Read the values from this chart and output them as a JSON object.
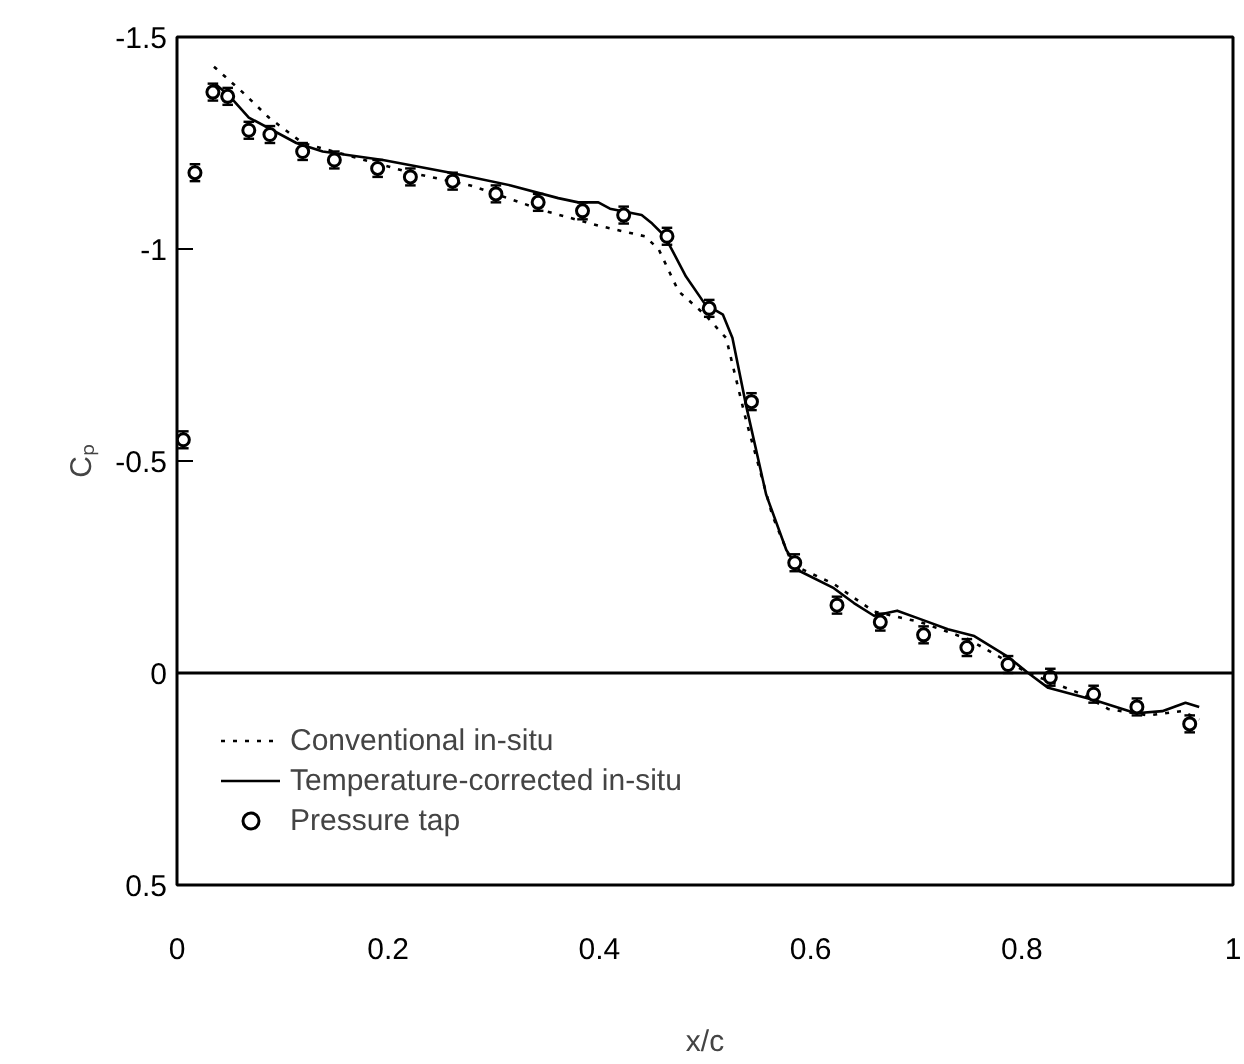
{
  "chart_data": {
    "type": "line",
    "xlabel": "x/c",
    "ylabel": "Cₚ",
    "xlim": [
      0,
      1
    ],
    "xticks": [
      0,
      0.2,
      0.4,
      0.6,
      0.8,
      1
    ],
    "ylim": [
      0.5,
      -1.5
    ],
    "yticks": [
      -1.5,
      -1,
      -0.5,
      0,
      0.5
    ],
    "grid": false,
    "legend": "bottom left",
    "ref_lines": [
      {
        "axis": "y",
        "value": 0
      }
    ],
    "series": [
      {
        "name": "Conventional in-situ",
        "line_style": "dotted",
        "color": "#000000",
        "x": [
          0.035,
          0.062,
          0.087,
          0.119,
          0.163,
          0.221,
          0.278,
          0.348,
          0.399,
          0.443,
          0.456,
          0.475,
          0.5,
          0.52,
          0.539,
          0.564,
          0.583,
          0.622,
          0.66,
          0.704,
          0.749,
          0.806,
          0.857,
          0.882,
          0.92,
          0.952,
          0.968
        ],
        "values": [
          -1.43,
          -1.37,
          -1.31,
          -1.25,
          -1.22,
          -1.18,
          -1.15,
          -1.09,
          -1.055,
          -1.03,
          -1.0,
          -0.9,
          -0.845,
          -0.79,
          -0.595,
          -0.37,
          -0.255,
          -0.21,
          -0.145,
          -0.12,
          -0.08,
          0.0,
          0.05,
          0.085,
          0.1,
          0.09,
          0.11
        ]
      },
      {
        "name": "Temperature-corrected in-situ",
        "line_style": "solid",
        "color": "#000000",
        "x": [
          0.036,
          0.05,
          0.068,
          0.113,
          0.138,
          0.195,
          0.259,
          0.316,
          0.361,
          0.38,
          0.399,
          0.41,
          0.44,
          0.45,
          0.462,
          0.482,
          0.5,
          0.517,
          0.526,
          0.539,
          0.558,
          0.577,
          0.59,
          0.622,
          0.641,
          0.66,
          0.682,
          0.704,
          0.73,
          0.755,
          0.787,
          0.806,
          0.825,
          0.87,
          0.908,
          0.933,
          0.955,
          0.968
        ],
        "values": [
          -1.39,
          -1.36,
          -1.31,
          -1.25,
          -1.23,
          -1.21,
          -1.18,
          -1.15,
          -1.12,
          -1.11,
          -1.11,
          -1.095,
          -1.08,
          -1.06,
          -1.03,
          -0.935,
          -0.87,
          -0.845,
          -0.79,
          -0.63,
          -0.42,
          -0.29,
          -0.24,
          -0.2,
          -0.165,
          -0.135,
          -0.147,
          -0.127,
          -0.103,
          -0.087,
          -0.038,
          0.0,
          0.035,
          0.065,
          0.095,
          0.09,
          0.07,
          0.08
        ]
      },
      {
        "name": "Pressure tap",
        "type": "scatter",
        "marker": "circle",
        "color": "#000000",
        "x": [
          0.006,
          0.017,
          0.034,
          0.048,
          0.068,
          0.088,
          0.119,
          0.149,
          0.19,
          0.221,
          0.261,
          0.302,
          0.342,
          0.384,
          0.423,
          0.464,
          0.504,
          0.544,
          0.585,
          0.625,
          0.666,
          0.707,
          0.748,
          0.787,
          0.827,
          0.868,
          0.909,
          0.959
        ],
        "values": [
          -0.55,
          -1.18,
          -1.37,
          -1.36,
          -1.28,
          -1.27,
          -1.23,
          -1.21,
          -1.19,
          -1.17,
          -1.16,
          -1.13,
          -1.11,
          -1.09,
          -1.08,
          -1.03,
          -0.86,
          -0.64,
          -0.26,
          -0.16,
          -0.12,
          -0.09,
          -0.06,
          -0.02,
          0.01,
          0.05,
          0.08,
          0.12
        ],
        "errors": [
          0.02,
          0.02,
          0.02,
          0.02,
          0.02,
          0.02,
          0.02,
          0.02,
          0.02,
          0.02,
          0.02,
          0.02,
          0.02,
          0.02,
          0.02,
          0.02,
          0.02,
          0.02,
          0.02,
          0.02,
          0.02,
          0.02,
          0.02,
          0.02,
          0.02,
          0.02,
          0.02,
          0.02
        ]
      }
    ]
  }
}
